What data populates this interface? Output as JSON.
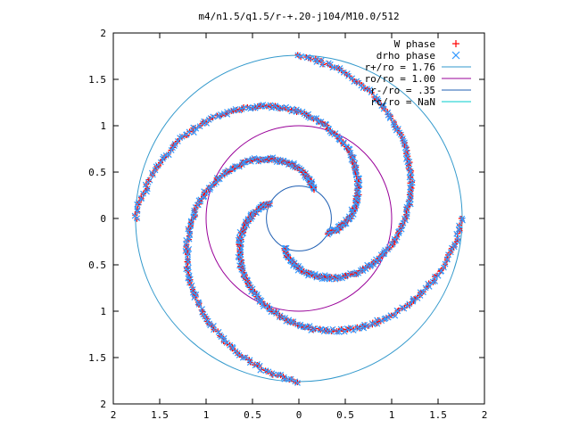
{
  "chart_data": {
    "type": "scatter",
    "title": "m4/n1.5/q1.5/r-+.20-j104/M10.0/512",
    "xlabel": "",
    "ylabel": "",
    "xlim": [
      -2,
      2
    ],
    "ylim": [
      -2,
      2
    ],
    "x_tick_values": [
      -2,
      -1.5,
      -1,
      -0.5,
      0,
      0.5,
      1,
      1.5,
      2
    ],
    "x_tick_labels": [
      "2",
      "1.5",
      "1",
      "0.5",
      "0",
      "0.5",
      "1",
      "1.5",
      "2"
    ],
    "y_tick_values": [
      2,
      1.5,
      1,
      0.5,
      0,
      -0.5,
      -1,
      -1.5,
      -2
    ],
    "y_tick_labels": [
      "2",
      "1.5",
      "1",
      "0.5",
      "0",
      "0.5",
      "1",
      "1.5",
      "2"
    ],
    "grid": false,
    "legend_position": "top-right",
    "colors": {
      "w_phase": "#ff0000",
      "drho_phase": "#3399ff",
      "circle_r_plus": "#3399cc",
      "circle_ro": "#990099",
      "circle_r_minus": "#1f5fb3",
      "circle_rc": "#00cccc",
      "axes": "#000000"
    },
    "series": [
      {
        "name": "W phase",
        "marker": "+",
        "arm_model": "points lie along 4 trailing spiral arms between r-/ro and r+/ro; the points are spread along four spiral arms",
        "inner_radius": 0.35,
        "outer_radius": 1.76,
        "arm_count": 4
      },
      {
        "name": "drho phase",
        "marker": "x",
        "arm_model": "points lie along 4 trailing spiral arms between r-/ro and r+/ro; the points are spread along four spiral arms",
        "inner_radius": 0.35,
        "outer_radius": 1.76,
        "arm_count": 4
      }
    ],
    "circles": [
      {
        "name": "r+/ro = 1.76",
        "radius": 1.76
      },
      {
        "name": "ro/ro = 1.00",
        "radius": 1.0
      },
      {
        "name": "r-/ro = .35",
        "radius": 0.35
      },
      {
        "name": "rc/ro = NaN",
        "radius": null
      }
    ]
  }
}
